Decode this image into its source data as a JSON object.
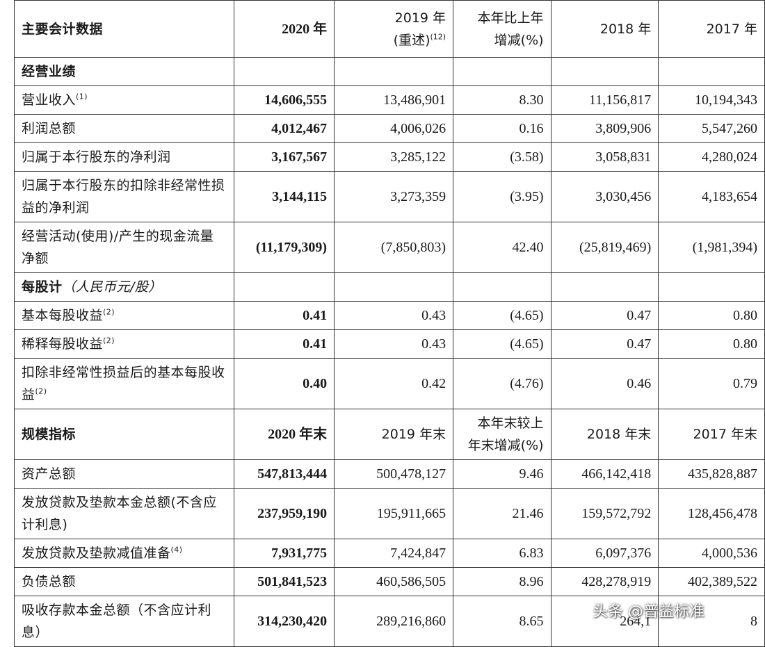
{
  "header": {
    "label": "主要会计数据",
    "c2020": "2020 年",
    "c2019": "2019 年",
    "c2019_sub": "(重述)",
    "c2019_note": "(12)",
    "change_l1": "本年比上年",
    "change_l2": "增减(%)",
    "c2018": "2018 年",
    "c2017": "2017 年"
  },
  "section_ops": "经营业绩",
  "ops_rows": [
    {
      "label": "营业收入",
      "note": "(1)",
      "v2020": "14,606,555",
      "v2019": "13,486,901",
      "chg": "8.30",
      "v2018": "11,156,817",
      "v2017": "10,194,343"
    },
    {
      "label": "利润总额",
      "note": "",
      "v2020": "4,012,467",
      "v2019": "4,006,026",
      "chg": "0.16",
      "v2018": "3,809,906",
      "v2017": "5,547,260"
    },
    {
      "label": "归属于本行股东的净利润",
      "note": "",
      "v2020": "3,167,567",
      "v2019": "3,285,122",
      "chg": "(3.58)",
      "v2018": "3,058,831",
      "v2017": "4,280,024"
    },
    {
      "label": "归属于本行股东的扣除非经常性损益的净利润",
      "note": "",
      "v2020": "3,144,115",
      "v2019": "3,273,359",
      "chg": "(3.95)",
      "v2018": "3,030,456",
      "v2017": "4,183,654"
    },
    {
      "label": "经营活动(使用)/产生的现金流量净额",
      "note": "",
      "v2020": "(11,179,309)",
      "v2019": "(7,850,803)",
      "chg": "42.40",
      "v2018": "(25,819,469)",
      "v2017": "(1,981,394)"
    }
  ],
  "section_eps": "每股计",
  "section_eps_unit": "（人民币元/股）",
  "eps_rows": [
    {
      "label": "基本每股收益",
      "note": "(2)",
      "v2020": "0.41",
      "v2019": "0.43",
      "chg": "(4.65)",
      "v2018": "0.47",
      "v2017": "0.80"
    },
    {
      "label": "稀释每股收益",
      "note": "(2)",
      "v2020": "0.41",
      "v2019": "0.43",
      "chg": "(4.65)",
      "v2018": "0.47",
      "v2017": "0.80"
    },
    {
      "label": "扣除非经常性损益后的基本每股收益",
      "note": "(2)",
      "v2020": "0.40",
      "v2019": "0.42",
      "chg": "(4.76)",
      "v2018": "0.46",
      "v2017": "0.79"
    }
  ],
  "scale_header": {
    "label": "规模指标",
    "c2020": "2020 年末",
    "c2019": "2019 年末",
    "change_l1": "本年末较上",
    "change_l2": "年末增减(%)",
    "c2018": "2018 年末",
    "c2017": "2017 年末"
  },
  "scale_rows": [
    {
      "label": "资产总额",
      "note": "",
      "v2020": "547,813,444",
      "v2019": "500,478,127",
      "chg": "9.46",
      "v2018": "466,142,418",
      "v2017": "435,828,887"
    },
    {
      "label": "发放贷款及垫款本金总额(不含应计利息)",
      "note": "",
      "v2020": "237,959,190",
      "v2019": "195,911,665",
      "chg": "21.46",
      "v2018": "159,572,792",
      "v2017": "128,456,478"
    },
    {
      "label": "发放贷款及垫款减值准备",
      "note": "(4)",
      "v2020": "7,931,775",
      "v2019": "7,424,847",
      "chg": "6.83",
      "v2018": "6,097,376",
      "v2017": "4,000,536"
    },
    {
      "label": "负债总额",
      "note": "",
      "v2020": "501,841,523",
      "v2019": "460,586,505",
      "chg": "8.96",
      "v2018": "428,278,919",
      "v2017": "402,389,522"
    },
    {
      "label": "吸收存款本金总额（不含应计利息）",
      "note": "",
      "v2020": "314,230,420",
      "v2019": "289,216,860",
      "chg": "8.65",
      "v2018": "264,1",
      "v2017": "8"
    }
  ],
  "watermark": "头条 @普益标准"
}
